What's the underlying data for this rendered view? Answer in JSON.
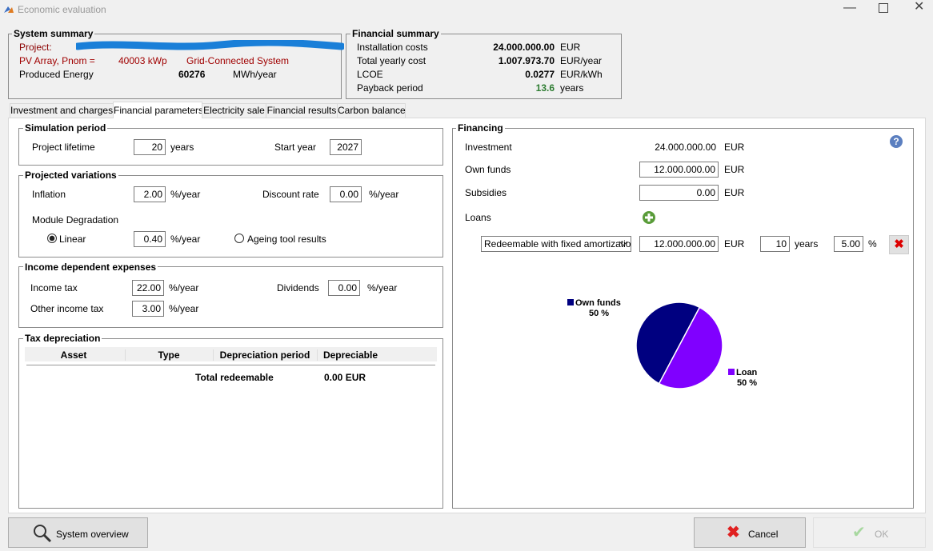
{
  "window": {
    "title": "Economic evaluation"
  },
  "system_summary": {
    "title": "System summary",
    "project_label": "Project:",
    "pv_label": "PV Array, Pnom =",
    "pv_value": "40003 kWp",
    "system_type": "Grid-Connected System",
    "energy_label": "Produced Energy",
    "energy_value": "60276",
    "energy_unit": "MWh/year"
  },
  "financial_summary": {
    "title": "Financial summary",
    "rows": [
      {
        "label": "Installation costs",
        "value": "24.000.000.00",
        "unit": "EUR"
      },
      {
        "label": "Total yearly cost",
        "value": "1.007.973.70",
        "unit": "EUR/year"
      },
      {
        "label": "LCOE",
        "value": "0.0277",
        "unit": "EUR/kWh"
      },
      {
        "label": "Payback period",
        "value": "13.6",
        "unit": "years"
      }
    ]
  },
  "tabs": {
    "items": [
      "Investment and charges",
      "Financial parameters",
      "Electricity sale",
      "Financial results",
      "Carbon balance"
    ],
    "active": 1
  },
  "simulation_period": {
    "title": "Simulation period",
    "lifetime_label": "Project lifetime",
    "lifetime": "20",
    "lifetime_unit": "years",
    "start_label": "Start year",
    "start": "2027"
  },
  "projected_variations": {
    "title": "Projected variations",
    "inflation_label": "Inflation",
    "inflation": "2.00",
    "inflation_unit": "%/year",
    "discount_label": "Discount rate",
    "discount": "0.00",
    "discount_unit": "%/year",
    "degradation": {
      "label": "Module Degradation",
      "options": [
        "Linear",
        "Ageing tool results"
      ],
      "selected": 0,
      "value": "0.40",
      "unit": "%/year"
    }
  },
  "income_expenses": {
    "title": "Income dependent expenses",
    "income_tax_label": "Income tax",
    "income_tax": "22.00",
    "income_tax_unit": "%/year",
    "dividends_label": "Dividends",
    "dividends": "0.00",
    "dividends_unit": "%/year",
    "other_label": "Other income tax",
    "other": "3.00",
    "other_unit": "%/year"
  },
  "tax_depreciation": {
    "title": "Tax depreciation",
    "columns": [
      "Asset",
      "Type",
      "Depreciation period",
      "Depreciable"
    ],
    "total_label": "Total redeemable",
    "total": "0.00 EUR"
  },
  "financing": {
    "title": "Financing",
    "investment_label": "Investment",
    "investment": "24.000.000.00",
    "investment_unit": "EUR",
    "own_label": "Own funds",
    "own": "12.000.000.00",
    "own_unit": "EUR",
    "subsidies_label": "Subsidies",
    "subsidies": "0.00",
    "subsidies_unit": "EUR",
    "loans_label": "Loans",
    "loan": {
      "type": "Redeemable with fixed amortizatio",
      "amount": "12.000.000.00",
      "amount_unit": "EUR",
      "duration": "10",
      "duration_unit": "years",
      "rate": "5.00",
      "rate_unit": "%"
    }
  },
  "pie": {
    "type": "pie",
    "labels": [
      "Own funds",
      "Loan"
    ],
    "values": [
      50,
      50
    ],
    "value_labels": [
      "50 %",
      "50 %"
    ],
    "colors": [
      "#000080",
      "#8000ff"
    ]
  },
  "buttons": {
    "overview": "System overview",
    "cancel": "Cancel",
    "ok": "OK"
  }
}
